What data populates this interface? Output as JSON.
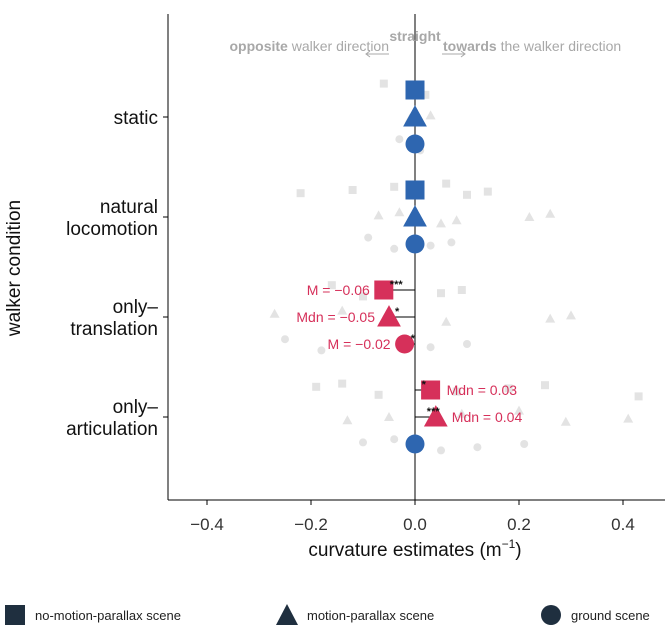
{
  "chart_data": {
    "type": "scatter",
    "xlabel": "curvature estimates",
    "xlabel_unit_base": "m",
    "xlabel_unit_exp": "−1",
    "ylabel": "walker condition",
    "xlim": [
      -0.47,
      0.47
    ],
    "xticks": [
      -0.4,
      -0.2,
      0.0,
      0.2,
      0.4
    ],
    "xtick_labels": [
      "−0.4",
      "−0.2",
      "0.0",
      "0.2",
      "0.4"
    ],
    "categories": [
      {
        "line1": "static",
        "line2": ""
      },
      {
        "line1": "natural",
        "line2": "locomotion"
      },
      {
        "line1": "only–",
        "line2": "translation"
      },
      {
        "line1": "only–",
        "line2": "articulation"
      }
    ],
    "top_annotations": {
      "center": "straight",
      "left_bold": "opposite",
      "left_rest": " walker direction",
      "right_bold": "towards",
      "right_rest": " the walker direction"
    },
    "colors": {
      "significant": "#d6305a",
      "nonsignificant": "#2e66b0",
      "raw": "#e3e3e3",
      "legend": "#1f2f3f",
      "annotation": "#a8a8a8"
    },
    "series": [
      {
        "name": "no-motion-parallax scene",
        "shape": "square",
        "values": [
          {
            "condition": 0,
            "estimate": 0.0,
            "significant": false,
            "stars": "",
            "label": ""
          },
          {
            "condition": 1,
            "estimate": 0.0,
            "significant": false,
            "stars": "",
            "label": ""
          },
          {
            "condition": 2,
            "estimate": -0.06,
            "significant": true,
            "stars": "***",
            "label": "M =  −0.06"
          },
          {
            "condition": 3,
            "estimate": 0.03,
            "significant": true,
            "stars": "*",
            "label": "Mdn =  0.03"
          }
        ]
      },
      {
        "name": "motion-parallax scene",
        "shape": "triangle",
        "values": [
          {
            "condition": 0,
            "estimate": 0.0,
            "significant": false,
            "stars": "",
            "label": ""
          },
          {
            "condition": 1,
            "estimate": 0.0,
            "significant": false,
            "stars": "",
            "label": ""
          },
          {
            "condition": 2,
            "estimate": -0.05,
            "significant": true,
            "stars": "*",
            "label": "Mdn =  −0.05"
          },
          {
            "condition": 3,
            "estimate": 0.04,
            "significant": true,
            "stars": "***",
            "label": "Mdn =  0.04"
          }
        ]
      },
      {
        "name": "ground scene",
        "shape": "circle",
        "values": [
          {
            "condition": 0,
            "estimate": 0.0,
            "significant": false,
            "stars": "",
            "label": ""
          },
          {
            "condition": 1,
            "estimate": 0.0,
            "significant": false,
            "stars": "",
            "label": ""
          },
          {
            "condition": 2,
            "estimate": -0.02,
            "significant": true,
            "stars": "*",
            "label": "M =  −0.02"
          },
          {
            "condition": 3,
            "estimate": 0.0,
            "significant": false,
            "stars": "",
            "label": ""
          }
        ]
      }
    ],
    "raw_points": [
      {
        "condition": 0,
        "shape": 0,
        "x": -0.06
      },
      {
        "condition": 0,
        "shape": 0,
        "x": 0.02
      },
      {
        "condition": 0,
        "shape": 1,
        "x": -0.01
      },
      {
        "condition": 0,
        "shape": 1,
        "x": 0.03
      },
      {
        "condition": 0,
        "shape": 2,
        "x": -0.03
      },
      {
        "condition": 0,
        "shape": 2,
        "x": 0.01
      },
      {
        "condition": 1,
        "shape": 0,
        "x": -0.22
      },
      {
        "condition": 1,
        "shape": 0,
        "x": -0.12
      },
      {
        "condition": 1,
        "shape": 0,
        "x": -0.04
      },
      {
        "condition": 1,
        "shape": 0,
        "x": 0.06
      },
      {
        "condition": 1,
        "shape": 0,
        "x": 0.1
      },
      {
        "condition": 1,
        "shape": 0,
        "x": 0.14
      },
      {
        "condition": 1,
        "shape": 1,
        "x": -0.07
      },
      {
        "condition": 1,
        "shape": 1,
        "x": -0.03
      },
      {
        "condition": 1,
        "shape": 1,
        "x": 0.05
      },
      {
        "condition": 1,
        "shape": 1,
        "x": 0.08
      },
      {
        "condition": 1,
        "shape": 1,
        "x": 0.22
      },
      {
        "condition": 1,
        "shape": 1,
        "x": 0.26
      },
      {
        "condition": 1,
        "shape": 2,
        "x": -0.09
      },
      {
        "condition": 1,
        "shape": 2,
        "x": -0.04
      },
      {
        "condition": 1,
        "shape": 2,
        "x": 0.03
      },
      {
        "condition": 1,
        "shape": 2,
        "x": 0.07
      },
      {
        "condition": 2,
        "shape": 0,
        "x": -0.16
      },
      {
        "condition": 2,
        "shape": 0,
        "x": -0.1
      },
      {
        "condition": 2,
        "shape": 0,
        "x": 0.05
      },
      {
        "condition": 2,
        "shape": 0,
        "x": 0.09
      },
      {
        "condition": 2,
        "shape": 1,
        "x": -0.27
      },
      {
        "condition": 2,
        "shape": 1,
        "x": -0.14
      },
      {
        "condition": 2,
        "shape": 1,
        "x": 0.06
      },
      {
        "condition": 2,
        "shape": 1,
        "x": 0.26
      },
      {
        "condition": 2,
        "shape": 1,
        "x": 0.3
      },
      {
        "condition": 2,
        "shape": 2,
        "x": -0.25
      },
      {
        "condition": 2,
        "shape": 2,
        "x": -0.18
      },
      {
        "condition": 2,
        "shape": 2,
        "x": 0.03
      },
      {
        "condition": 2,
        "shape": 2,
        "x": 0.1
      },
      {
        "condition": 3,
        "shape": 0,
        "x": -0.19
      },
      {
        "condition": 3,
        "shape": 0,
        "x": -0.14
      },
      {
        "condition": 3,
        "shape": 0,
        "x": -0.07
      },
      {
        "condition": 3,
        "shape": 0,
        "x": 0.08
      },
      {
        "condition": 3,
        "shape": 0,
        "x": 0.18
      },
      {
        "condition": 3,
        "shape": 0,
        "x": 0.25
      },
      {
        "condition": 3,
        "shape": 0,
        "x": 0.43
      },
      {
        "condition": 3,
        "shape": 1,
        "x": -0.13
      },
      {
        "condition": 3,
        "shape": 1,
        "x": -0.05
      },
      {
        "condition": 3,
        "shape": 1,
        "x": 0.09
      },
      {
        "condition": 3,
        "shape": 1,
        "x": 0.2
      },
      {
        "condition": 3,
        "shape": 1,
        "x": 0.29
      },
      {
        "condition": 3,
        "shape": 1,
        "x": 0.41
      },
      {
        "condition": 3,
        "shape": 2,
        "x": -0.1
      },
      {
        "condition": 3,
        "shape": 2,
        "x": -0.04
      },
      {
        "condition": 3,
        "shape": 2,
        "x": 0.05
      },
      {
        "condition": 3,
        "shape": 2,
        "x": 0.12
      },
      {
        "condition": 3,
        "shape": 2,
        "x": 0.21
      }
    ],
    "legend": [
      {
        "label": "no-motion-parallax scene",
        "icon": "square-icon"
      },
      {
        "label": "motion-parallax scene",
        "icon": "triangle-icon"
      },
      {
        "label": "ground scene",
        "icon": "circle-icon"
      }
    ],
    "legend_position": "bottom"
  }
}
